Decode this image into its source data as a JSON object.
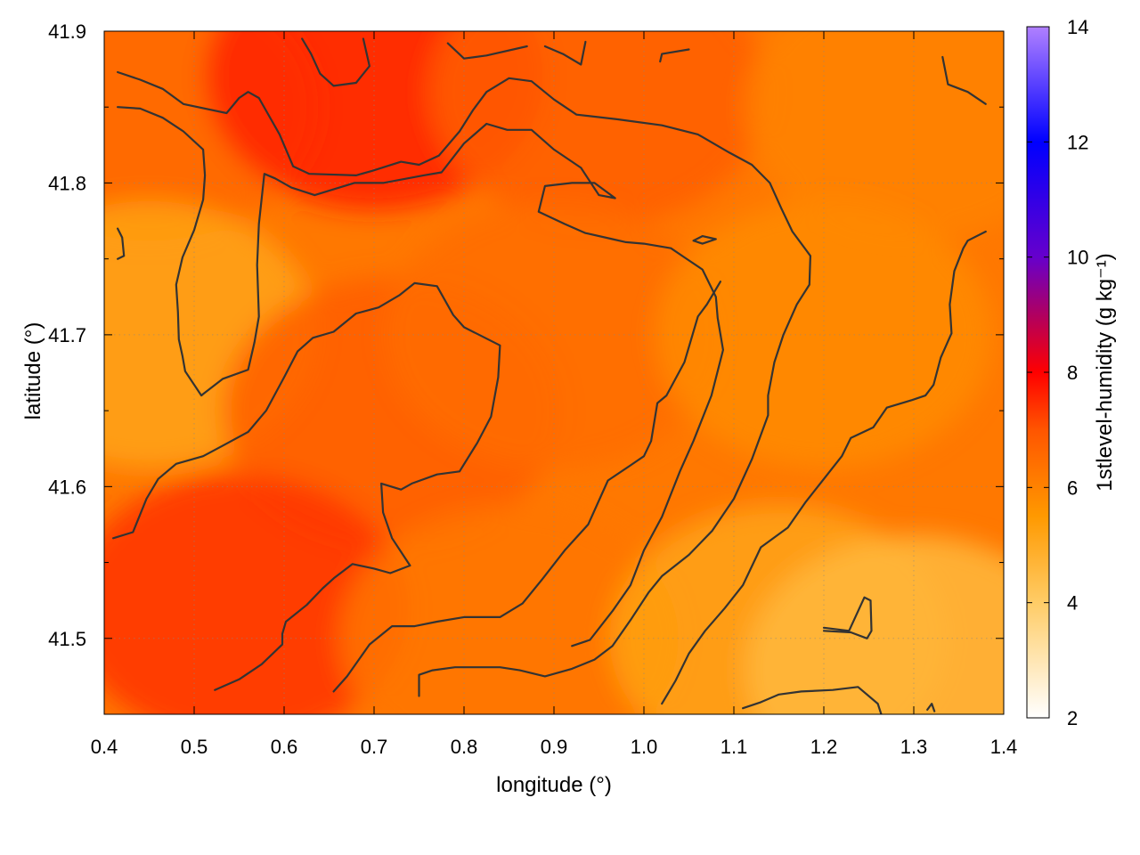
{
  "chart_data": {
    "type": "heatmap",
    "title": "",
    "xlabel": "longitude (°)",
    "ylabel": "latitude (°)",
    "xlim": [
      0.4,
      1.4
    ],
    "ylim": [
      41.45,
      41.9
    ],
    "xticks": [
      "0.4",
      "0.5",
      "0.6",
      "0.7",
      "0.8",
      "0.9",
      "1.0",
      "1.1",
      "1.2",
      "1.3",
      "1.4"
    ],
    "yticks": [
      "41.5",
      "41.6",
      "41.7",
      "41.8",
      "41.9"
    ],
    "grid": true,
    "colorbar": {
      "label": "1stlevel-humidity (g kg⁻¹)",
      "range": [
        2,
        14
      ],
      "ticks": [
        "2",
        "4",
        "6",
        "8",
        "10",
        "12",
        "14"
      ],
      "colormap": [
        {
          "value": 2,
          "color": "#ffffff"
        },
        {
          "value": 4,
          "color": "#ffcc66"
        },
        {
          "value": 5.5,
          "color": "#ff9900"
        },
        {
          "value": 7,
          "color": "#ff5500"
        },
        {
          "value": 8,
          "color": "#ff0000"
        },
        {
          "value": 9,
          "color": "#b00060"
        },
        {
          "value": 10,
          "color": "#6600cc"
        },
        {
          "value": 12,
          "color": "#0000ff"
        },
        {
          "value": 14,
          "color": "#b080ff"
        }
      ]
    },
    "field_samples": [
      {
        "lon": 0.45,
        "lat": 41.85,
        "value": 6.6
      },
      {
        "lon": 0.7,
        "lat": 41.87,
        "value": 7.6
      },
      {
        "lon": 0.95,
        "lat": 41.86,
        "value": 6.8
      },
      {
        "lon": 1.3,
        "lat": 41.85,
        "value": 6.0
      },
      {
        "lon": 0.45,
        "lat": 41.7,
        "value": 5.2
      },
      {
        "lon": 0.72,
        "lat": 41.65,
        "value": 6.8
      },
      {
        "lon": 0.9,
        "lat": 41.7,
        "value": 6.5
      },
      {
        "lon": 1.2,
        "lat": 41.7,
        "value": 5.8
      },
      {
        "lon": 0.55,
        "lat": 41.52,
        "value": 7.4
      },
      {
        "lon": 0.85,
        "lat": 41.5,
        "value": 6.3
      },
      {
        "lon": 1.15,
        "lat": 41.5,
        "value": 5.2
      },
      {
        "lon": 1.3,
        "lat": 41.48,
        "value": 4.6
      }
    ],
    "contours": [
      [
        [
          0.415,
          41.873
        ],
        [
          0.44,
          41.868
        ],
        [
          0.465,
          41.862
        ],
        [
          0.488,
          41.852
        ],
        [
          0.536,
          41.846
        ],
        [
          0.55,
          41.856
        ],
        [
          0.56,
          41.86
        ],
        [
          0.572,
          41.856
        ],
        [
          0.595,
          41.832
        ],
        [
          0.61,
          41.811
        ],
        [
          0.628,
          41.806
        ],
        [
          0.68,
          41.805
        ],
        [
          0.698,
          41.808
        ],
        [
          0.73,
          41.814
        ],
        [
          0.75,
          41.812
        ],
        [
          0.772,
          41.818
        ],
        [
          0.795,
          41.834
        ],
        [
          0.81,
          41.848
        ],
        [
          0.825,
          41.86
        ],
        [
          0.85,
          41.869
        ],
        [
          0.875,
          41.867
        ],
        [
          0.9,
          41.855
        ],
        [
          0.925,
          41.845
        ],
        [
          0.97,
          41.842
        ],
        [
          1.02,
          41.838
        ],
        [
          1.06,
          41.832
        ],
        [
          1.095,
          41.82
        ],
        [
          1.12,
          41.812
        ],
        [
          1.14,
          41.8
        ],
        [
          1.153,
          41.783
        ],
        [
          1.165,
          41.768
        ],
        [
          1.18,
          41.756
        ],
        [
          1.185,
          41.752
        ],
        [
          1.184,
          41.733
        ],
        [
          1.17,
          41.72
        ],
        [
          1.155,
          41.7
        ],
        [
          1.145,
          41.682
        ],
        [
          1.138,
          41.66
        ],
        [
          1.138,
          41.647
        ],
        [
          1.12,
          41.618
        ],
        [
          1.1,
          41.592
        ],
        [
          1.076,
          41.571
        ],
        [
          1.05,
          41.555
        ],
        [
          1.02,
          41.541
        ],
        [
          1.005,
          41.53
        ],
        [
          0.985,
          41.512
        ],
        [
          0.965,
          41.495
        ],
        [
          0.945,
          41.486
        ],
        [
          0.92,
          41.48
        ],
        [
          0.89,
          41.475
        ],
        [
          0.862,
          41.479
        ],
        [
          0.84,
          41.481
        ],
        [
          0.79,
          41.481
        ],
        [
          0.765,
          41.479
        ],
        [
          0.75,
          41.476
        ],
        [
          0.75,
          41.462
        ]
      ],
      [
        [
          0.415,
          41.85
        ],
        [
          0.44,
          41.849
        ],
        [
          0.465,
          41.843
        ],
        [
          0.488,
          41.834
        ],
        [
          0.51,
          41.822
        ],
        [
          0.512,
          41.805
        ],
        [
          0.51,
          41.789
        ],
        [
          0.5,
          41.769
        ],
        [
          0.487,
          41.751
        ],
        [
          0.48,
          41.733
        ],
        [
          0.482,
          41.715
        ],
        [
          0.483,
          41.697
        ],
        [
          0.487,
          41.686
        ],
        [
          0.49,
          41.676
        ],
        [
          0.508,
          41.66
        ],
        [
          0.51,
          41.661
        ],
        [
          0.532,
          41.671
        ],
        [
          0.56,
          41.677
        ],
        [
          0.567,
          41.695
        ],
        [
          0.572,
          41.712
        ],
        [
          0.57,
          41.746
        ],
        [
          0.572,
          41.773
        ],
        [
          0.578,
          41.806
        ],
        [
          0.59,
          41.803
        ],
        [
          0.608,
          41.797
        ],
        [
          0.634,
          41.792
        ],
        [
          0.678,
          41.8
        ],
        [
          0.71,
          41.8
        ],
        [
          0.755,
          41.805
        ],
        [
          0.775,
          41.807
        ],
        [
          0.8,
          41.826
        ],
        [
          0.825,
          41.839
        ],
        [
          0.848,
          41.835
        ],
        [
          0.875,
          41.835
        ],
        [
          0.9,
          41.822
        ],
        [
          0.93,
          41.81
        ],
        [
          0.95,
          41.792
        ],
        [
          0.968,
          41.79
        ],
        [
          0.945,
          41.8
        ],
        [
          0.92,
          41.8
        ],
        [
          0.89,
          41.798
        ],
        [
          0.883,
          41.781
        ],
        [
          0.912,
          41.773
        ],
        [
          0.935,
          41.767
        ],
        [
          0.965,
          41.763
        ],
        [
          0.98,
          41.761
        ],
        [
          1.0,
          41.76
        ],
        [
          1.03,
          41.757
        ],
        [
          1.045,
          41.751
        ],
        [
          1.065,
          41.743
        ],
        [
          1.08,
          41.725
        ],
        [
          1.082,
          41.711
        ],
        [
          1.088,
          41.69
        ],
        [
          1.075,
          41.66
        ],
        [
          1.055,
          41.63
        ],
        [
          1.04,
          41.61
        ],
        [
          1.02,
          41.58
        ],
        [
          1.0,
          41.558
        ],
        [
          0.985,
          41.535
        ],
        [
          0.965,
          41.518
        ],
        [
          0.94,
          41.499
        ],
        [
          0.92,
          41.495
        ]
      ],
      [
        [
          0.41,
          41.566
        ],
        [
          0.432,
          41.57
        ],
        [
          0.447,
          41.592
        ],
        [
          0.46,
          41.605
        ],
        [
          0.48,
          41.615
        ],
        [
          0.51,
          41.62
        ],
        [
          0.532,
          41.627
        ],
        [
          0.56,
          41.636
        ],
        [
          0.58,
          41.65
        ],
        [
          0.6,
          41.672
        ],
        [
          0.615,
          41.689
        ],
        [
          0.632,
          41.698
        ],
        [
          0.655,
          41.702
        ],
        [
          0.68,
          41.714
        ],
        [
          0.705,
          41.718
        ],
        [
          0.728,
          41.726
        ],
        [
          0.745,
          41.734
        ],
        [
          0.77,
          41.732
        ],
        [
          0.788,
          41.713
        ],
        [
          0.8,
          41.705
        ],
        [
          0.84,
          41.693
        ],
        [
          0.838,
          41.672
        ],
        [
          0.83,
          41.646
        ],
        [
          0.815,
          41.629
        ],
        [
          0.795,
          41.61
        ],
        [
          0.77,
          41.608
        ],
        [
          0.742,
          41.602
        ],
        [
          0.73,
          41.598
        ],
        [
          0.708,
          41.602
        ],
        [
          0.71,
          41.583
        ],
        [
          0.72,
          41.566
        ],
        [
          0.74,
          41.548
        ],
        [
          0.718,
          41.543
        ],
        [
          0.7,
          41.546
        ],
        [
          0.676,
          41.549
        ],
        [
          0.656,
          41.54
        ],
        [
          0.643,
          41.533
        ],
        [
          0.625,
          41.522
        ],
        [
          0.602,
          41.511
        ],
        [
          0.598,
          41.503
        ],
        [
          0.598,
          41.496
        ],
        [
          0.575,
          41.483
        ],
        [
          0.55,
          41.473
        ],
        [
          0.523,
          41.466
        ]
      ],
      [
        [
          0.655,
          41.465
        ],
        [
          0.67,
          41.475
        ],
        [
          0.695,
          41.496
        ],
        [
          0.72,
          41.508
        ],
        [
          0.745,
          41.508
        ],
        [
          0.77,
          41.511
        ],
        [
          0.8,
          41.514
        ],
        [
          0.84,
          41.514
        ],
        [
          0.865,
          41.523
        ],
        [
          0.887,
          41.539
        ],
        [
          0.912,
          41.558
        ],
        [
          0.938,
          41.575
        ],
        [
          0.96,
          41.604
        ],
        [
          0.985,
          41.614
        ],
        [
          1.0,
          41.62
        ],
        [
          1.008,
          41.63
        ],
        [
          1.015,
          41.655
        ],
        [
          1.025,
          41.66
        ],
        [
          1.045,
          41.682
        ],
        [
          1.06,
          41.712
        ],
        [
          1.07,
          41.72
        ],
        [
          1.085,
          41.735
        ]
      ],
      [
        [
          1.02,
          41.457
        ],
        [
          1.035,
          41.472
        ],
        [
          1.05,
          41.49
        ],
        [
          1.068,
          41.505
        ],
        [
          1.09,
          41.52
        ],
        [
          1.11,
          41.535
        ],
        [
          1.13,
          41.56
        ],
        [
          1.16,
          41.573
        ],
        [
          1.18,
          41.59
        ],
        [
          1.2,
          41.605
        ],
        [
          1.22,
          41.62
        ],
        [
          1.23,
          41.632
        ],
        [
          1.255,
          41.639
        ],
        [
          1.27,
          41.652
        ],
        [
          1.298,
          41.657
        ],
        [
          1.313,
          41.66
        ],
        [
          1.322,
          41.667
        ],
        [
          1.33,
          41.685
        ],
        [
          1.342,
          41.701
        ],
        [
          1.34,
          41.72
        ],
        [
          1.345,
          41.742
        ],
        [
          1.355,
          41.757
        ],
        [
          1.36,
          41.762
        ],
        [
          1.38,
          41.768
        ]
      ],
      [
        [
          1.11,
          41.454
        ],
        [
          1.13,
          41.458
        ],
        [
          1.15,
          41.463
        ],
        [
          1.175,
          41.465
        ],
        [
          1.21,
          41.466
        ],
        [
          1.238,
          41.468
        ],
        [
          1.26,
          41.457
        ],
        [
          1.265,
          41.448
        ]
      ],
      [
        [
          1.2,
          41.505
        ],
        [
          1.23,
          41.504
        ],
        [
          1.248,
          41.5
        ],
        [
          1.253,
          41.505
        ],
        [
          1.252,
          41.525
        ],
        [
          1.245,
          41.527
        ],
        [
          1.228,
          41.505
        ],
        [
          1.2,
          41.507
        ]
      ],
      [
        [
          1.055,
          41.762
        ],
        [
          1.065,
          41.765
        ],
        [
          1.08,
          41.763
        ],
        [
          1.065,
          41.76
        ],
        [
          1.055,
          41.762
        ]
      ],
      [
        [
          0.415,
          41.77
        ],
        [
          0.42,
          41.764
        ],
        [
          0.422,
          41.752
        ],
        [
          0.415,
          41.75
        ]
      ],
      [
        [
          0.62,
          41.895
        ],
        [
          0.63,
          41.885
        ],
        [
          0.64,
          41.872
        ],
        [
          0.655,
          41.864
        ],
        [
          0.68,
          41.866
        ],
        [
          0.695,
          41.877
        ],
        [
          0.688,
          41.895
        ]
      ],
      [
        [
          0.782,
          41.892
        ],
        [
          0.8,
          41.882
        ],
        [
          0.825,
          41.884
        ],
        [
          0.87,
          41.89
        ]
      ],
      [
        [
          0.89,
          41.89
        ],
        [
          0.91,
          41.885
        ],
        [
          0.93,
          41.878
        ],
        [
          0.935,
          41.893
        ]
      ],
      [
        [
          1.018,
          41.88
        ],
        [
          1.02,
          41.885
        ],
        [
          1.05,
          41.888
        ]
      ],
      [
        [
          1.332,
          41.883
        ],
        [
          1.338,
          41.865
        ],
        [
          1.36,
          41.86
        ],
        [
          1.38,
          41.852
        ]
      ],
      [
        [
          1.315,
          41.453
        ],
        [
          1.32,
          41.457
        ],
        [
          1.323,
          41.452
        ]
      ]
    ]
  }
}
